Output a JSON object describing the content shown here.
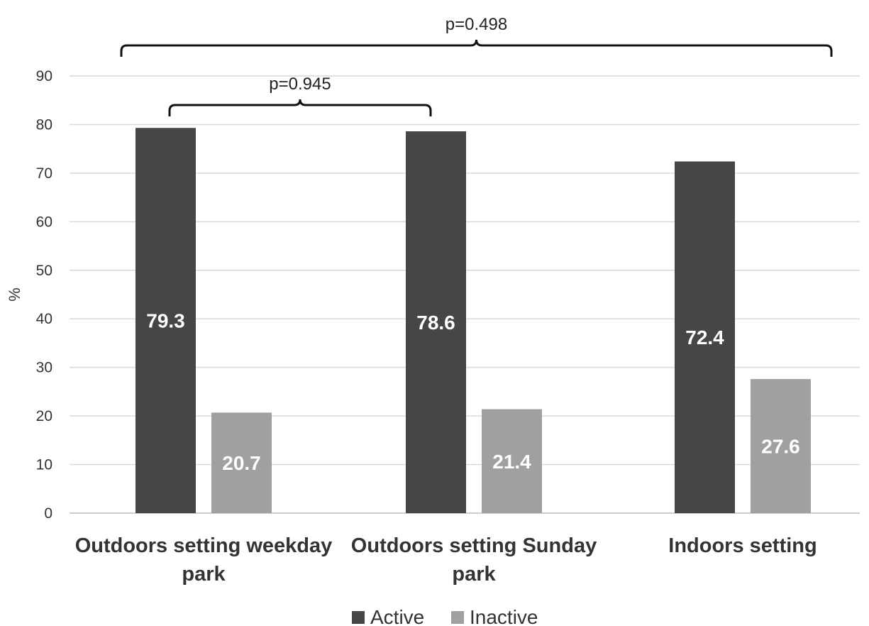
{
  "chart_data": {
    "type": "bar",
    "title": "",
    "xlabel": "",
    "ylabel": "%",
    "ylim": [
      0,
      90
    ],
    "yticks": [
      0,
      10,
      20,
      30,
      40,
      50,
      60,
      70,
      80,
      90
    ],
    "grid": true,
    "legend_position": "bottom",
    "categories": [
      [
        "Outdoors setting weekday",
        "park"
      ],
      [
        "Outdoors setting Sunday",
        "park"
      ],
      [
        "Indoors setting"
      ]
    ],
    "series": [
      {
        "name": "Active",
        "color": "#464646",
        "values": [
          79.3,
          78.6,
          72.4
        ],
        "labels": [
          "79.3",
          "78.6",
          "72.4"
        ]
      },
      {
        "name": "Inactive",
        "color": "#a0a0a0",
        "values": [
          20.7,
          21.4,
          27.6
        ],
        "labels": [
          "20.7",
          "21.4",
          "27.6"
        ]
      }
    ],
    "annotations": [
      {
        "text": "p=0.945",
        "from_category": 0,
        "to_category": 1
      },
      {
        "text": "p=0.498",
        "from_category": 0,
        "to_category": 2
      }
    ]
  }
}
